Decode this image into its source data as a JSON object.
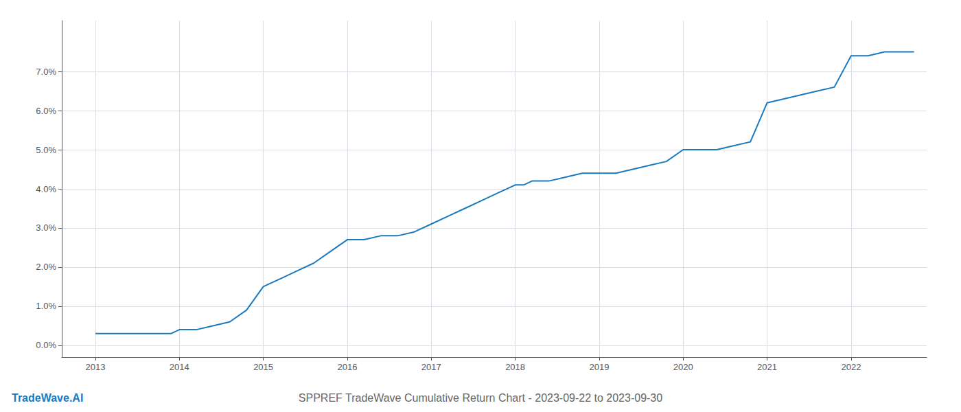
{
  "chart_data": {
    "type": "line",
    "title": "SPPREF TradeWave Cumulative Return Chart - 2023-09-22 to 2023-09-30",
    "annotations": [
      {
        "text": "TradeWave.AI",
        "color": "#1a7abf"
      }
    ],
    "x": [
      2013.0,
      2013.1,
      2013.3,
      2013.5,
      2013.7,
      2013.9,
      2014.0,
      2014.1,
      2014.2,
      2014.4,
      2014.6,
      2014.8,
      2015.0,
      2015.2,
      2015.4,
      2015.6,
      2015.8,
      2016.0,
      2016.1,
      2016.2,
      2016.4,
      2016.6,
      2016.8,
      2017.0,
      2017.2,
      2017.4,
      2017.6,
      2017.8,
      2018.0,
      2018.1,
      2018.2,
      2018.3,
      2018.4,
      2018.6,
      2018.8,
      2019.0,
      2019.2,
      2019.4,
      2019.6,
      2019.8,
      2020.0,
      2020.1,
      2020.2,
      2020.4,
      2020.6,
      2020.8,
      2021.0,
      2021.2,
      2021.4,
      2021.6,
      2021.8,
      2022.0,
      2022.2,
      2022.4,
      2022.6,
      2022.75
    ],
    "values": [
      0.003,
      0.003,
      0.003,
      0.003,
      0.003,
      0.003,
      0.004,
      0.004,
      0.004,
      0.005,
      0.006,
      0.009,
      0.015,
      0.017,
      0.019,
      0.021,
      0.024,
      0.027,
      0.027,
      0.027,
      0.028,
      0.028,
      0.029,
      0.031,
      0.033,
      0.035,
      0.037,
      0.039,
      0.041,
      0.041,
      0.042,
      0.042,
      0.042,
      0.043,
      0.044,
      0.044,
      0.044,
      0.045,
      0.046,
      0.047,
      0.05,
      0.05,
      0.05,
      0.05,
      0.051,
      0.052,
      0.062,
      0.063,
      0.064,
      0.065,
      0.066,
      0.074,
      0.074,
      0.075,
      0.075,
      0.075
    ],
    "color": "#1a7abf",
    "xlim": [
      2012.6,
      2022.9
    ],
    "ylim": [
      -0.003,
      0.083
    ],
    "xticks": [
      2013,
      2014,
      2015,
      2016,
      2017,
      2018,
      2019,
      2020,
      2021,
      2022
    ],
    "yticks": [
      {
        "value": 0.0,
        "label": "0.0%"
      },
      {
        "value": 0.01,
        "label": "1.0%"
      },
      {
        "value": 0.02,
        "label": "2.0%"
      },
      {
        "value": 0.03,
        "label": "3.0%"
      },
      {
        "value": 0.04,
        "label": "4.0%"
      },
      {
        "value": 0.05,
        "label": "5.0%"
      },
      {
        "value": 0.06,
        "label": "6.0%"
      },
      {
        "value": 0.07,
        "label": "7.0%"
      }
    ],
    "grid": true
  }
}
